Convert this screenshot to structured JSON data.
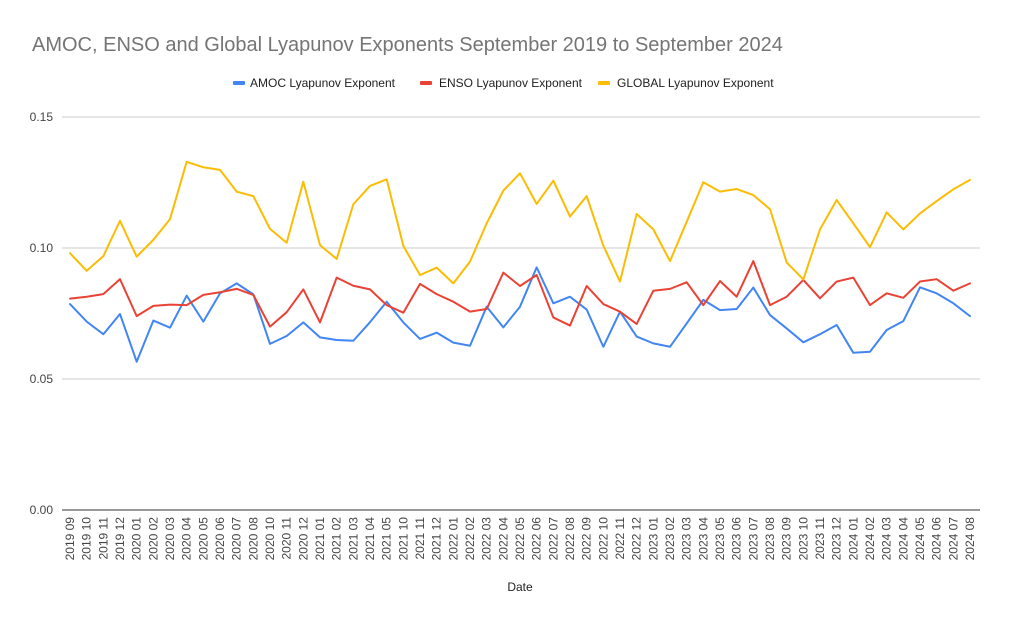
{
  "chart_data": {
    "type": "line",
    "title": "AMOC, ENSO and Global Lyapunov Exponents September 2019 to September 2024",
    "xlabel": "Date",
    "ylabel": "",
    "ylim": [
      0,
      0.15
    ],
    "yticks": [
      "0.00",
      "0.05",
      "0.10",
      "0.15"
    ],
    "ytick_values": [
      0,
      0.05,
      0.1,
      0.15
    ],
    "grid": true,
    "legend_position": "top-center",
    "categories": [
      "2019 09",
      "2019 10",
      "2019 11",
      "2019 12",
      "2020 01",
      "2020 02",
      "2020 03",
      "2020 04",
      "2020 05",
      "2020 06",
      "2020 07",
      "2020 08",
      "2020 10",
      "2020 11",
      "2020 12",
      "2021 01",
      "2021 02",
      "2021 03",
      "2021 04",
      "2021 05",
      "2021 10",
      "2021 11",
      "2021 12",
      "2022 01",
      "2022 02",
      "2022 03",
      "2022 04",
      "2022 05",
      "2022 06",
      "2022 07",
      "2022 08",
      "2022 09",
      "2022 10",
      "2022 11",
      "2022 12",
      "2023 01",
      "2023 02",
      "2023 03",
      "2023 04",
      "2023 05",
      "2023 06",
      "2023 07",
      "2023 08",
      "2023 09",
      "2023 10",
      "2023 11",
      "2023 12",
      "2024 01",
      "2024 02",
      "2024 03",
      "2024 04",
      "2024 05",
      "2024 06",
      "2024 07",
      "2024 08"
    ],
    "series": [
      {
        "name": "AMOC Lyapunov Exponent",
        "color": "#4285F4",
        "values": [
          0.0786,
          0.0719,
          0.0671,
          0.0748,
          0.0566,
          0.0723,
          0.0696,
          0.0818,
          0.0719,
          0.0827,
          0.0865,
          0.0823,
          0.0634,
          0.0664,
          0.0716,
          0.0659,
          0.0649,
          0.0646,
          0.0717,
          0.0795,
          0.0716,
          0.0653,
          0.0677,
          0.0639,
          0.0627,
          0.0776,
          0.0697,
          0.0776,
          0.0926,
          0.0789,
          0.0814,
          0.0765,
          0.0623,
          0.0757,
          0.0662,
          0.0636,
          0.0623,
          0.0712,
          0.0802,
          0.0763,
          0.0767,
          0.0849,
          0.0744,
          0.0693,
          0.064,
          0.0671,
          0.0706,
          0.06,
          0.0604,
          0.0687,
          0.0721,
          0.085,
          0.0827,
          0.0789,
          0.074
        ]
      },
      {
        "name": "ENSO Lyapunov Exponent",
        "color": "#EA4335",
        "values": [
          0.0807,
          0.0814,
          0.0824,
          0.0881,
          0.074,
          0.0779,
          0.0784,
          0.0782,
          0.0821,
          0.0831,
          0.0844,
          0.0821,
          0.07,
          0.0755,
          0.0842,
          0.0716,
          0.0887,
          0.0856,
          0.0842,
          0.0782,
          0.0753,
          0.0863,
          0.0824,
          0.0795,
          0.0757,
          0.0767,
          0.0906,
          0.0855,
          0.0897,
          0.0735,
          0.0704,
          0.0855,
          0.0786,
          0.0757,
          0.071,
          0.0837,
          0.0844,
          0.0869,
          0.0782,
          0.0874,
          0.0814,
          0.095,
          0.0782,
          0.0814,
          0.0878,
          0.0808,
          0.0872,
          0.0887,
          0.0782,
          0.0827,
          0.081,
          0.0872,
          0.0881,
          0.0837,
          0.0865
        ]
      },
      {
        "name": "GLOBAL Lyapunov Exponent",
        "color": "#FBBC04",
        "values": [
          0.098,
          0.0913,
          0.0969,
          0.1104,
          0.0967,
          0.1031,
          0.111,
          0.1329,
          0.1308,
          0.1298,
          0.1215,
          0.1198,
          0.1073,
          0.102,
          0.1253,
          0.1011,
          0.0958,
          0.1167,
          0.1237,
          0.1262,
          0.1008,
          0.0897,
          0.0925,
          0.0865,
          0.0948,
          0.1094,
          0.1219,
          0.1285,
          0.1168,
          0.1257,
          0.112,
          0.1198,
          0.1009,
          0.0872,
          0.113,
          0.1071,
          0.095,
          0.11,
          0.1251,
          0.1215,
          0.1225,
          0.1202,
          0.1148,
          0.0945,
          0.088,
          0.1071,
          0.1183,
          0.1094,
          0.1003,
          0.1136,
          0.1071,
          0.1132,
          0.1179,
          0.1224,
          0.126
        ]
      }
    ]
  }
}
